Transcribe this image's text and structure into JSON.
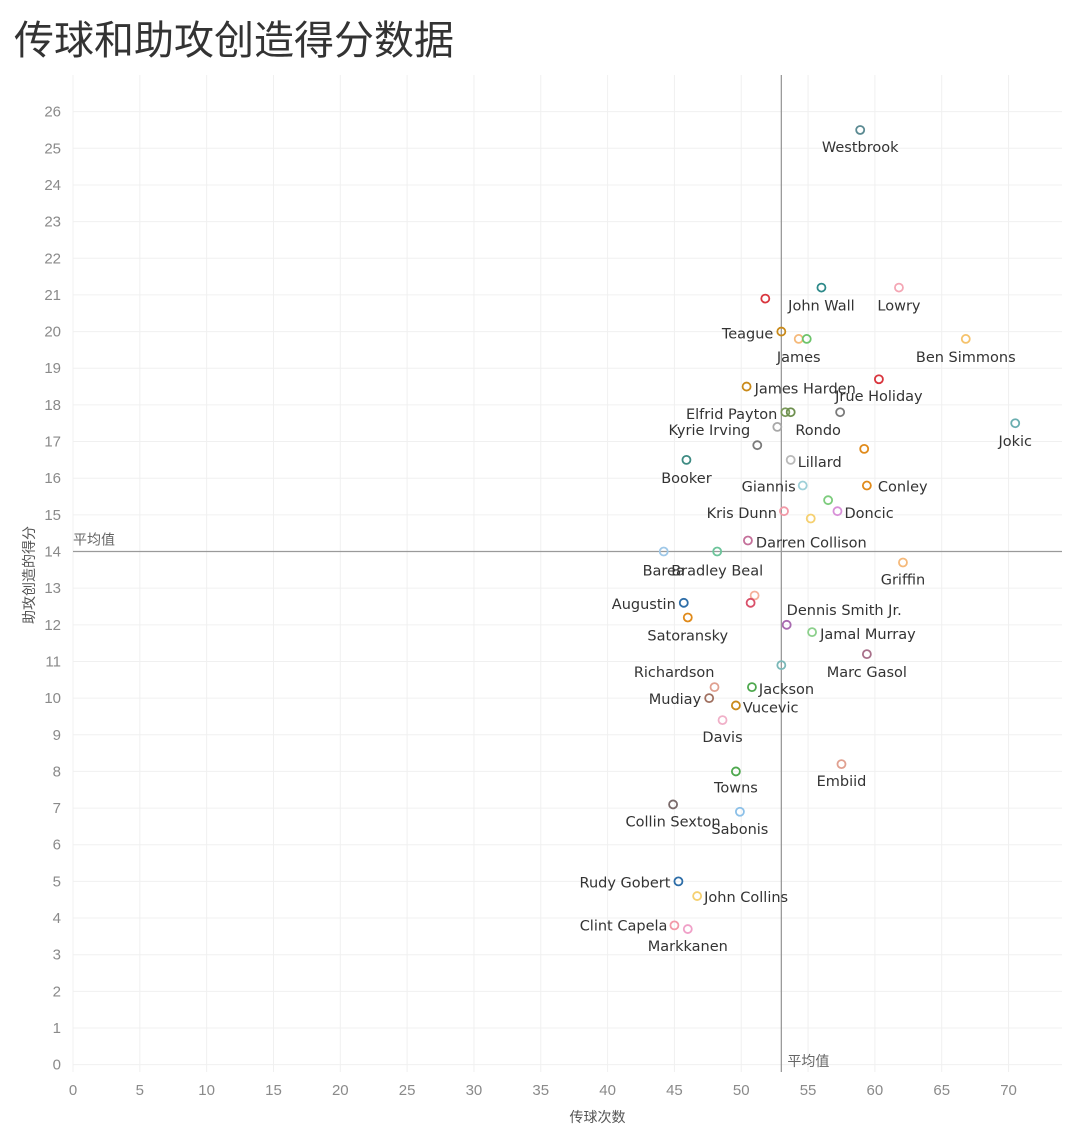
{
  "title": "传球和助攻创造得分数据",
  "chart_data": {
    "type": "scatter",
    "title": "传球和助攻创造得分数据",
    "xlabel": "传球次数",
    "ylabel": "助攻创造的得分",
    "xlim": [
      0,
      74
    ],
    "ylim": [
      -0.2,
      27
    ],
    "x_ticks": [
      0,
      5,
      10,
      15,
      20,
      25,
      30,
      35,
      40,
      45,
      50,
      55,
      60,
      65,
      70
    ],
    "y_ticks": [
      0,
      1,
      2,
      3,
      4,
      5,
      6,
      7,
      8,
      9,
      10,
      11,
      12,
      13,
      14,
      15,
      16,
      17,
      18,
      19,
      20,
      21,
      22,
      23,
      24,
      25,
      26
    ],
    "grid": true,
    "reference_lines": {
      "x_avg": 53,
      "y_avg": 14,
      "x_label": "平均值",
      "y_label": "平均值"
    },
    "points": [
      {
        "label": "Westbrook",
        "x": 58.9,
        "y": 25.5,
        "color": "#5b8a92",
        "lx": 0,
        "ly": 22,
        "anchor": "middle"
      },
      {
        "label": "John Wall",
        "x": 56.0,
        "y": 21.2,
        "color": "#2e8a8a",
        "lx": 0,
        "ly": 23,
        "anchor": "middle"
      },
      {
        "label": "Lowry",
        "x": 61.8,
        "y": 21.2,
        "color": "#f4a6b4",
        "lx": 0,
        "ly": 23,
        "anchor": "middle"
      },
      {
        "label": "",
        "x": 51.8,
        "y": 20.9,
        "color": "#d9363e",
        "lx": 0,
        "ly": 0,
        "anchor": "middle"
      },
      {
        "label": "Teague",
        "x": 53.0,
        "y": 20.0,
        "color": "#c98a1a",
        "lx": -8,
        "ly": 7,
        "anchor": "end"
      },
      {
        "label": "James",
        "x": 54.3,
        "y": 19.8,
        "color": "#f5b97a",
        "lx": 0,
        "ly": 23,
        "anchor": "middle"
      },
      {
        "label": "",
        "x": 54.9,
        "y": 19.8,
        "color": "#6cc46a",
        "lx": 0,
        "ly": 0,
        "anchor": "middle"
      },
      {
        "label": "Ben Simmons",
        "x": 66.8,
        "y": 19.8,
        "color": "#f5c26b",
        "lx": 0,
        "ly": 23,
        "anchor": "middle"
      },
      {
        "label": "Jrue Holiday",
        "x": 60.3,
        "y": 18.7,
        "color": "#d9363e",
        "lx": 0,
        "ly": 22,
        "anchor": "middle"
      },
      {
        "label": "James Harden",
        "x": 50.4,
        "y": 18.5,
        "color": "#c98a1a",
        "lx": 8,
        "ly": 7,
        "anchor": "start"
      },
      {
        "label": "Elfrid Payton",
        "x": 53.3,
        "y": 17.8,
        "color": "#7a9a5a",
        "lx": -8,
        "ly": 7,
        "anchor": "end"
      },
      {
        "label": "",
        "x": 53.7,
        "y": 17.8,
        "color": "#6d8f4e",
        "lx": 0,
        "ly": 0,
        "anchor": "middle"
      },
      {
        "label": "",
        "x": 57.4,
        "y": 17.8,
        "color": "#7a7a7a",
        "lx": 0,
        "ly": 0,
        "anchor": "middle"
      },
      {
        "label": "Jokic",
        "x": 70.5,
        "y": 17.5,
        "color": "#6aaeb0",
        "lx": 0,
        "ly": 23,
        "anchor": "middle"
      },
      {
        "label": "Rondo",
        "x": 52.7,
        "y": 17.4,
        "color": "#a8a8a8",
        "lx": 18,
        "ly": 8,
        "anchor": "start"
      },
      {
        "label": "Kyrie Irving",
        "x": 51.2,
        "y": 16.9,
        "color": "#7a7a7a",
        "lx": -7,
        "ly": -10,
        "anchor": "end"
      },
      {
        "label": "",
        "x": 59.2,
        "y": 16.8,
        "color": "#e08a1a",
        "lx": 0,
        "ly": 0,
        "anchor": "middle"
      },
      {
        "label": "Booker",
        "x": 45.9,
        "y": 16.5,
        "color": "#3d8a82",
        "lx": 0,
        "ly": 23,
        "anchor": "middle"
      },
      {
        "label": "Lillard",
        "x": 53.7,
        "y": 16.5,
        "color": "#b9b9b9",
        "lx": 7,
        "ly": 7,
        "anchor": "start"
      },
      {
        "label": "Giannis",
        "x": 54.6,
        "y": 15.8,
        "color": "#9fd0d8",
        "lx": -7,
        "ly": 6,
        "anchor": "end"
      },
      {
        "label": "Conley",
        "x": 59.4,
        "y": 15.8,
        "color": "#e08a1a",
        "lx": 11,
        "ly": 6,
        "anchor": "start"
      },
      {
        "label": "",
        "x": 56.5,
        "y": 15.4,
        "color": "#7dcc7d",
        "lx": 0,
        "ly": 0,
        "anchor": "middle"
      },
      {
        "label": "Doncic",
        "x": 57.2,
        "y": 15.1,
        "color": "#d890d8",
        "lx": 7,
        "ly": 7,
        "anchor": "start"
      },
      {
        "label": "Kris Dunn",
        "x": 53.2,
        "y": 15.1,
        "color": "#f29aa8",
        "lx": -7,
        "ly": 7,
        "anchor": "end"
      },
      {
        "label": "",
        "x": 55.2,
        "y": 14.9,
        "color": "#f5d070",
        "lx": 0,
        "ly": 0,
        "anchor": "middle"
      },
      {
        "label": "Darren Collison",
        "x": 50.5,
        "y": 14.3,
        "color": "#c4709a",
        "lx": 8,
        "ly": 7,
        "anchor": "start"
      },
      {
        "label": "Barea",
        "x": 44.2,
        "y": 14.0,
        "color": "#9fc8e8",
        "lx": 0,
        "ly": 24,
        "anchor": "middle"
      },
      {
        "label": "Bradley Beal",
        "x": 48.2,
        "y": 14.0,
        "color": "#6cc49a",
        "lx": 0,
        "ly": 24,
        "anchor": "middle"
      },
      {
        "label": "Griffin",
        "x": 62.1,
        "y": 13.7,
        "color": "#f5b97a",
        "lx": 0,
        "ly": 22,
        "anchor": "middle"
      },
      {
        "label": "",
        "x": 51.0,
        "y": 12.8,
        "color": "#f5b09a",
        "lx": 0,
        "ly": 0,
        "anchor": "middle"
      },
      {
        "label": "Augustin",
        "x": 45.7,
        "y": 12.6,
        "color": "#2e6ea8",
        "lx": -8,
        "ly": 6,
        "anchor": "end"
      },
      {
        "label": "",
        "x": 50.7,
        "y": 12.6,
        "color": "#d9506a",
        "lx": 0,
        "ly": 0,
        "anchor": "middle"
      },
      {
        "label": "Dennis Smith Jr.",
        "x": 53.4,
        "y": 12.0,
        "color": "#a86ab0",
        "lx": 0,
        "ly": -10,
        "anchor": "start"
      },
      {
        "label": "Satoransky",
        "x": 46.0,
        "y": 12.2,
        "color": "#e08a1a",
        "lx": 0,
        "ly": 23,
        "anchor": "middle"
      },
      {
        "label": "Jamal Murray",
        "x": 55.3,
        "y": 11.8,
        "color": "#8cd08c",
        "lx": 8,
        "ly": 7,
        "anchor": "start"
      },
      {
        "label": "Marc Gasol",
        "x": 59.4,
        "y": 11.2,
        "color": "#a8708a",
        "lx": 0,
        "ly": 23,
        "anchor": "middle"
      },
      {
        "label": "",
        "x": 53.0,
        "y": 10.9,
        "color": "#7ab8b8",
        "lx": 0,
        "ly": 0,
        "anchor": "middle"
      },
      {
        "label": "Richardson",
        "x": 48.0,
        "y": 10.3,
        "color": "#e0a090",
        "lx": 0,
        "ly": -10,
        "anchor": "end"
      },
      {
        "label": "Jackson",
        "x": 50.8,
        "y": 10.3,
        "color": "#4ea84e",
        "lx": 7,
        "ly": 7,
        "anchor": "start"
      },
      {
        "label": "Mudiay",
        "x": 47.6,
        "y": 10.0,
        "color": "#a07060",
        "lx": -8,
        "ly": 6,
        "anchor": "end"
      },
      {
        "label": "Vucevic",
        "x": 49.6,
        "y": 9.8,
        "color": "#c98a1a",
        "lx": 7,
        "ly": 7,
        "anchor": "start"
      },
      {
        "label": "Davis",
        "x": 48.6,
        "y": 9.4,
        "color": "#f0b0c8",
        "lx": 0,
        "ly": 22,
        "anchor": "middle"
      },
      {
        "label": "Embiid",
        "x": 57.5,
        "y": 8.2,
        "color": "#e0a090",
        "lx": 0,
        "ly": 22,
        "anchor": "middle"
      },
      {
        "label": "Towns",
        "x": 49.6,
        "y": 8.0,
        "color": "#4ea84e",
        "lx": 0,
        "ly": 21,
        "anchor": "middle"
      },
      {
        "label": "Collin Sexton",
        "x": 44.9,
        "y": 7.1,
        "color": "#7a6a6a",
        "lx": 0,
        "ly": 22,
        "anchor": "middle"
      },
      {
        "label": "Sabonis",
        "x": 49.9,
        "y": 6.9,
        "color": "#8cc0e8",
        "lx": 0,
        "ly": 22,
        "anchor": "middle"
      },
      {
        "label": "Rudy Gobert",
        "x": 45.3,
        "y": 5.0,
        "color": "#2e6ea8",
        "lx": -8,
        "ly": 6,
        "anchor": "end"
      },
      {
        "label": "John Collins",
        "x": 46.7,
        "y": 4.6,
        "color": "#f5d070",
        "lx": 7,
        "ly": 6,
        "anchor": "start"
      },
      {
        "label": "Clint Capela",
        "x": 45.0,
        "y": 3.8,
        "color": "#f29aa8",
        "lx": -7,
        "ly": 5,
        "anchor": "end"
      },
      {
        "label": "Markkanen",
        "x": 46.0,
        "y": 3.7,
        "color": "#f0a0c8",
        "lx": 0,
        "ly": 22,
        "anchor": "middle"
      }
    ]
  }
}
